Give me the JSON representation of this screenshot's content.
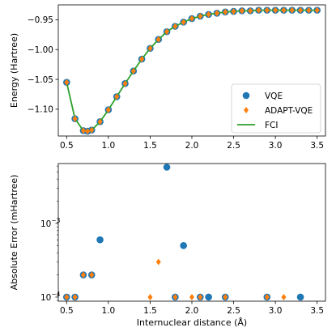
{
  "chart_data": [
    {
      "type": "line",
      "ylabel": "Energy (Hartree)",
      "xlabel": "",
      "xlim": [
        0.4,
        3.6
      ],
      "ylim": [
        -1.145,
        -0.925
      ],
      "xticks": [
        "0.5",
        "1.0",
        "1.5",
        "2.0",
        "2.5",
        "3.0",
        "3.5"
      ],
      "yticks": [
        "−0.95",
        "−1.00",
        "−1.05",
        "−1.10"
      ],
      "ytick_values": [
        -0.95,
        -1.0,
        -1.05,
        -1.1
      ],
      "legend": {
        "placement": "lower-right",
        "entries": [
          "VQE",
          "ADAPT-VQE",
          "FCI"
        ]
      },
      "colors": {
        "vqe": "#1f77b4",
        "adapt": "#ff7f0e",
        "fci": "#2ca02c"
      },
      "x": [
        0.5,
        0.6,
        0.7,
        0.75,
        0.8,
        0.9,
        1.0,
        1.1,
        1.2,
        1.3,
        1.4,
        1.5,
        1.6,
        1.7,
        1.8,
        1.9,
        2.0,
        2.1,
        2.2,
        2.3,
        2.4,
        2.5,
        2.6,
        2.7,
        2.8,
        2.9,
        3.0,
        3.1,
        3.2,
        3.3,
        3.4,
        3.5
      ],
      "series": [
        {
          "name": "VQE",
          "marker": "circle",
          "values": [
            -1.055,
            -1.116,
            -1.136,
            -1.137,
            -1.135,
            -1.121,
            -1.101,
            -1.079,
            -1.057,
            -1.036,
            -1.016,
            -0.998,
            -0.983,
            -0.97,
            -0.961,
            -0.954,
            -0.948,
            -0.944,
            -0.941,
            -0.939,
            -0.937,
            -0.936,
            -0.935,
            -0.935,
            -0.934,
            -0.934,
            -0.934,
            -0.934,
            -0.934,
            -0.934,
            -0.934,
            -0.934
          ]
        },
        {
          "name": "ADAPT-VQE",
          "marker": "diamond",
          "values": [
            -1.055,
            -1.116,
            -1.136,
            -1.137,
            -1.135,
            -1.121,
            -1.101,
            -1.079,
            -1.057,
            -1.036,
            -1.016,
            -0.998,
            -0.983,
            -0.97,
            -0.961,
            -0.954,
            -0.948,
            -0.944,
            -0.941,
            -0.939,
            -0.937,
            -0.936,
            -0.935,
            -0.935,
            -0.934,
            -0.934,
            -0.934,
            -0.934,
            -0.934,
            -0.934,
            -0.934,
            -0.934
          ]
        },
        {
          "name": "FCI",
          "marker": "line",
          "values": [
            -1.055,
            -1.116,
            -1.136,
            -1.137,
            -1.135,
            -1.121,
            -1.101,
            -1.079,
            -1.057,
            -1.036,
            -1.016,
            -0.998,
            -0.983,
            -0.97,
            -0.961,
            -0.954,
            -0.948,
            -0.944,
            -0.941,
            -0.939,
            -0.937,
            -0.936,
            -0.935,
            -0.935,
            -0.934,
            -0.934,
            -0.934,
            -0.934,
            -0.934,
            -0.934,
            -0.934,
            -0.934
          ]
        }
      ]
    },
    {
      "type": "scatter",
      "ylabel": "Absolute Error (mHartree)",
      "xlabel": "Internuclear distance (Å)",
      "xlim": [
        0.4,
        3.6
      ],
      "ylim": [
        8.8e-05,
        0.0065
      ],
      "yscale": "log",
      "xticks": [
        "0.5",
        "1.0",
        "1.5",
        "2.0",
        "2.5",
        "3.0",
        "3.5"
      ],
      "yticks": [
        "10",
        "10"
      ],
      "ytick_exponents": [
        "−3",
        "−4"
      ],
      "ytick_values": [
        0.001,
        0.0001
      ],
      "series": [
        {
          "name": "VQE",
          "marker": "circle",
          "x": [
            0.5,
            0.6,
            0.7,
            0.8,
            0.9,
            1.7,
            1.8,
            1.9,
            2.1,
            2.2,
            2.4,
            2.9,
            3.3
          ],
          "y": [
            0.0001,
            0.0001,
            0.0002,
            0.0002,
            0.0006,
            0.0058,
            0.0001,
            0.0005,
            0.0001,
            0.0001,
            0.0001,
            0.0001,
            0.0001
          ]
        },
        {
          "name": "ADAPT-VQE",
          "marker": "diamond",
          "x": [
            0.5,
            0.6,
            0.7,
            0.8,
            1.5,
            1.6,
            1.8,
            2.0,
            2.1,
            2.4,
            2.9,
            3.1
          ],
          "y": [
            0.0001,
            0.0001,
            0.0002,
            0.0002,
            0.0001,
            0.0003,
            0.0001,
            0.0001,
            0.0001,
            0.0001,
            0.0001,
            0.0001
          ]
        }
      ]
    }
  ]
}
